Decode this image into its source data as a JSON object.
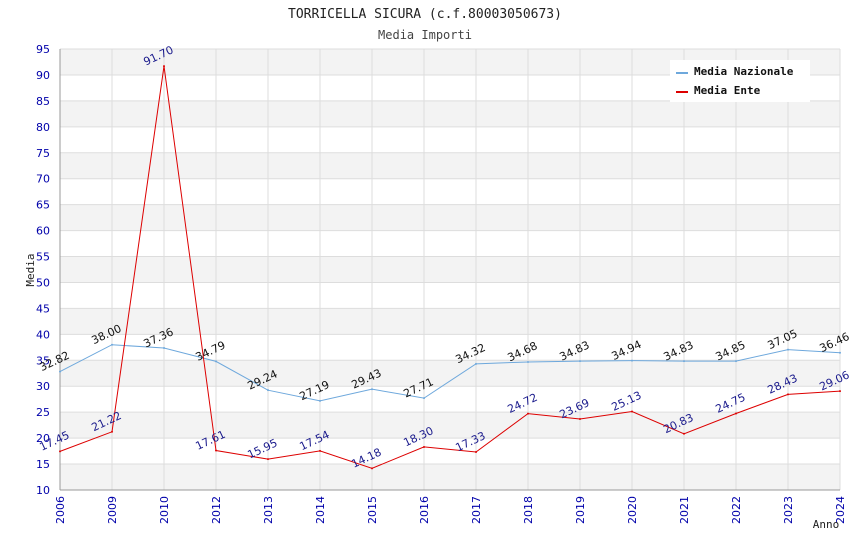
{
  "chart_data": {
    "type": "line",
    "title": "TORRICELLA SICURA (c.f.80003050673)",
    "subtitle": "Media Importi",
    "xlabel": "Anno",
    "ylabel": "Media",
    "ylim": [
      10,
      95
    ],
    "yticks": [
      10,
      15,
      20,
      25,
      30,
      35,
      40,
      45,
      50,
      55,
      60,
      65,
      70,
      75,
      80,
      85,
      90,
      95
    ],
    "categories": [
      "2006",
      "2009",
      "2010",
      "2012",
      "2013",
      "2014",
      "2015",
      "2016",
      "2017",
      "2018",
      "2019",
      "2020",
      "2021",
      "2022",
      "2023",
      "2024"
    ],
    "series": [
      {
        "name": "Media Nazionale",
        "color": "#6ea8dc",
        "values": [
          32.82,
          38.0,
          37.36,
          34.79,
          29.24,
          27.19,
          29.43,
          27.71,
          34.32,
          34.68,
          34.83,
          34.94,
          34.83,
          34.85,
          37.05,
          36.46
        ],
        "labels": [
          "32.82",
          "38.00",
          "37.36",
          "34.79",
          "29.24",
          "27.19",
          "29.43",
          "27.71",
          "34.32",
          "34.68",
          "34.83",
          "34.94",
          "34.83",
          "34.85",
          "37.05",
          "36.46"
        ]
      },
      {
        "name": "Media Ente",
        "color": "#dd0000",
        "values": [
          17.45,
          21.22,
          91.7,
          17.61,
          15.95,
          17.54,
          14.18,
          18.3,
          17.33,
          24.72,
          23.69,
          25.13,
          20.83,
          24.75,
          28.43,
          29.06
        ],
        "labels": [
          "17.45",
          "21.22",
          "91.70",
          "17.61",
          "15.95",
          "17.54",
          "14.18",
          "18.30",
          "17.33",
          "24.72",
          "23.69",
          "25.13",
          "20.83",
          "24.75",
          "28.43",
          "29.06"
        ]
      }
    ],
    "legend": {
      "position": "top-right"
    },
    "grid": true
  }
}
